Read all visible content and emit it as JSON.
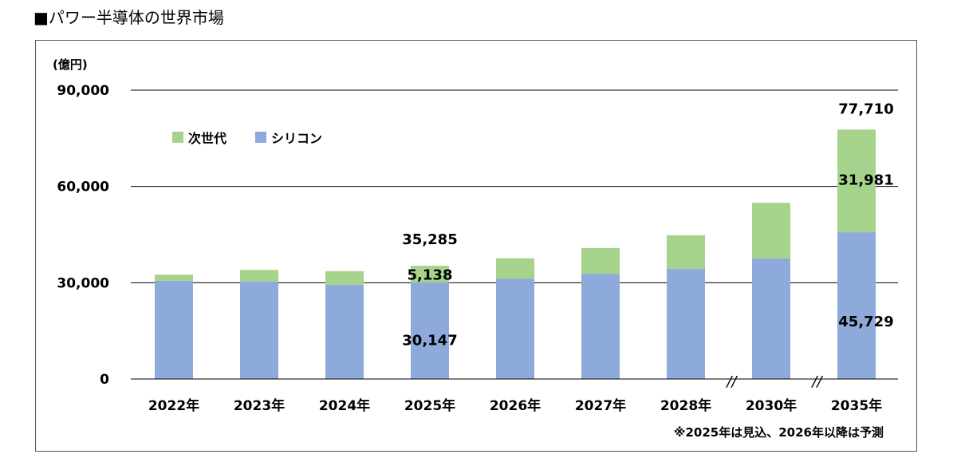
{
  "page_title": "■パワー半導体の世界市場",
  "unit_label": "(億円)",
  "footnote": "※2025年は見込、2026年以降は予測",
  "colors": {
    "next_gen": "#a6d38b",
    "silicon": "#8eaadb",
    "grid": "#000000"
  },
  "chart_data": {
    "type": "bar",
    "stacked": true,
    "categories": [
      "2022年",
      "2023年",
      "2024年",
      "2025年",
      "2026年",
      "2027年",
      "2028年",
      "2030年",
      "2035年"
    ],
    "series": [
      {
        "name": "シリコン",
        "values": [
          30600,
          30400,
          29400,
          30147,
          31300,
          32800,
          34300,
          37600,
          45729
        ]
      },
      {
        "name": "次世代",
        "values": [
          1900,
          3600,
          4200,
          5138,
          6300,
          8000,
          10500,
          17300,
          31981
        ]
      }
    ],
    "ylim": [
      0,
      90000
    ],
    "yticks": [
      "0",
      "30,000",
      "60,000",
      "90,000"
    ],
    "ytick_values": [
      0,
      30000,
      60000,
      90000
    ],
    "grid": true,
    "axis_breaks": [
      "2028年-2030年",
      "2030年-2035年"
    ],
    "break_symbol": "//",
    "legend": {
      "placement": "top-left"
    },
    "annotations": [
      {
        "category": "2025年",
        "label": "35,285",
        "kind": "total"
      },
      {
        "category": "2025年",
        "label": "5,138",
        "kind": "次世代"
      },
      {
        "category": "2025年",
        "label": "30,147",
        "kind": "シリコン"
      },
      {
        "category": "2035年",
        "label": "77,710",
        "kind": "total"
      },
      {
        "category": "2035年",
        "label": "31,981",
        "kind": "次世代"
      },
      {
        "category": "2035年",
        "label": "45,729",
        "kind": "シリコン"
      }
    ]
  }
}
